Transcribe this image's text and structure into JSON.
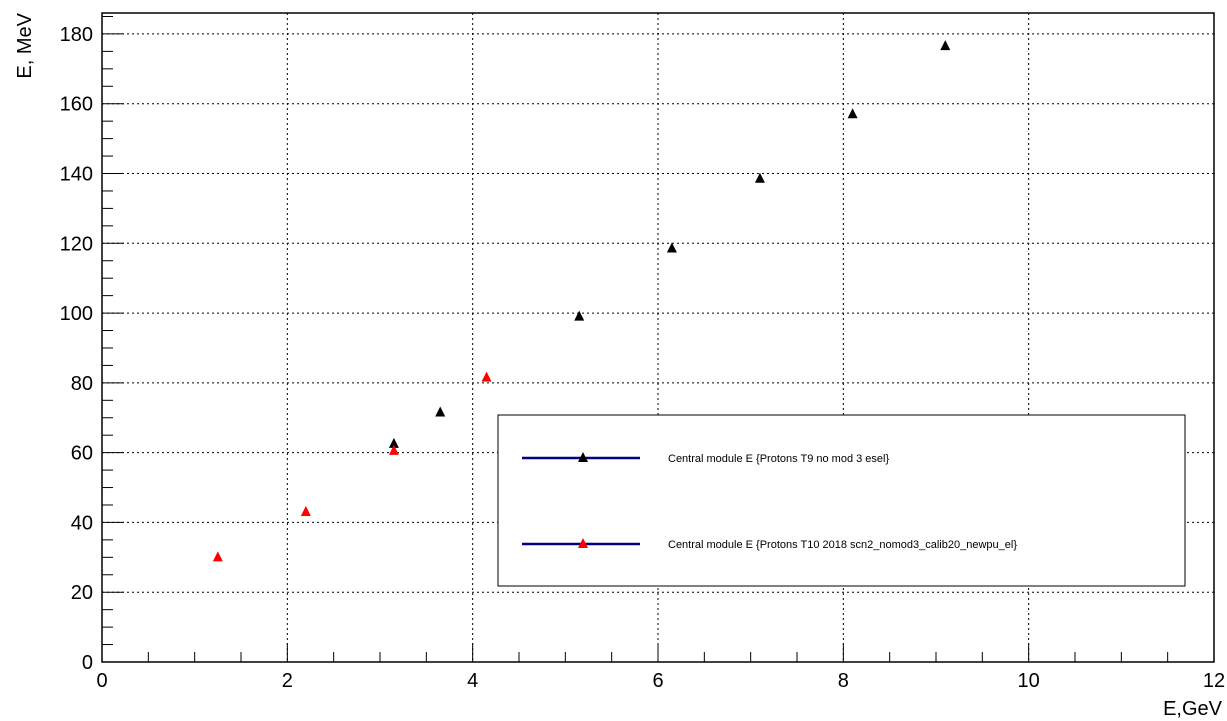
{
  "chart_data": {
    "type": "scatter",
    "title": "",
    "xlabel": "E,GeV",
    "ylabel": "E, MeV",
    "xlim": [
      0,
      12
    ],
    "ylim": [
      0,
      186
    ],
    "x_ticks": [
      "0",
      "2",
      "4",
      "6",
      "8",
      "10",
      "12"
    ],
    "y_ticks": [
      "0",
      "20",
      "40",
      "60",
      "80",
      "100",
      "120",
      "140",
      "160",
      "180"
    ],
    "grid": true,
    "legend_position": "lower-right",
    "series": [
      {
        "name": "Central module E {Protons T9 no mod 3 esel}",
        "color": "#000000",
        "marker": "triangle",
        "legend_line_color": "#000080",
        "points": [
          {
            "x": 3.15,
            "y": 62.5
          },
          {
            "x": 3.65,
            "y": 71.5
          },
          {
            "x": 5.15,
            "y": 99
          },
          {
            "x": 6.15,
            "y": 118.5
          },
          {
            "x": 7.1,
            "y": 138.5
          },
          {
            "x": 8.1,
            "y": 157
          },
          {
            "x": 9.1,
            "y": 176.5
          }
        ]
      },
      {
        "name": "Central module E {Protons T10 2018 scn2_nomod3_calib20_newpu_el}",
        "color": "#ff0000",
        "marker": "triangle",
        "legend_line_color": "#000080",
        "points": [
          {
            "x": 1.25,
            "y": 30
          },
          {
            "x": 2.2,
            "y": 43
          },
          {
            "x": 3.15,
            "y": 60.5
          },
          {
            "x": 4.15,
            "y": 81.5
          }
        ]
      }
    ]
  }
}
